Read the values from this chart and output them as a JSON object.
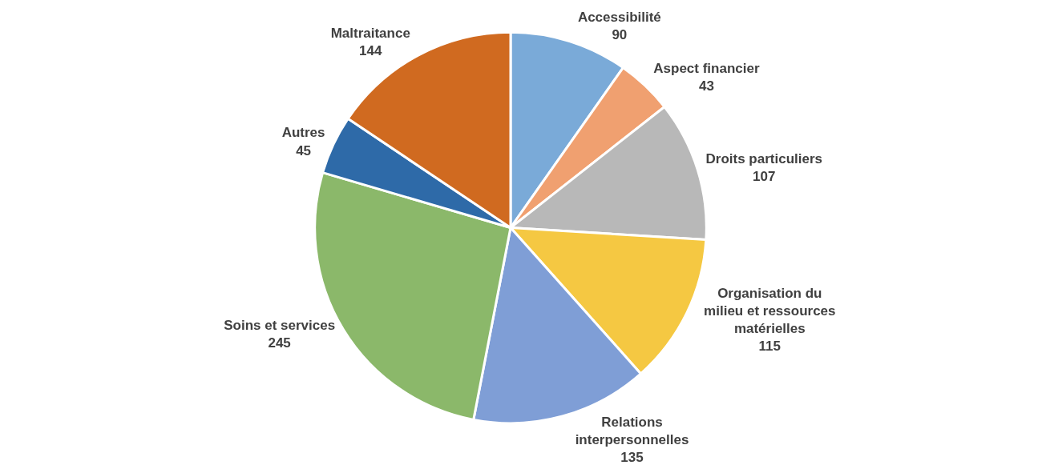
{
  "chart_data": {
    "type": "pie",
    "categories": [
      "Accessibilité",
      "Aspect financier",
      "Droits particuliers",
      "Organisation du milieu et ressources matérielles",
      "Relations interpersonnelles",
      "Soins et services",
      "Autres",
      "Maltraitance"
    ],
    "values": [
      90,
      43,
      107,
      115,
      135,
      245,
      45,
      144
    ],
    "colors": [
      "#7aaad8",
      "#f0a070",
      "#b8b8b8",
      "#f5c842",
      "#7f9ed6",
      "#8bb86a",
      "#2e6aa8",
      "#d06a20"
    ],
    "data_labels": true,
    "legend": false
  }
}
